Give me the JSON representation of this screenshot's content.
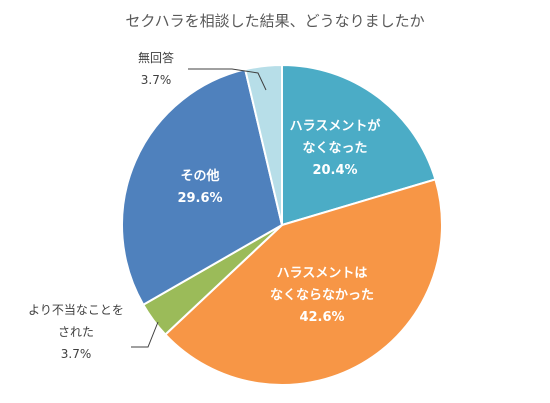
{
  "chart_data": {
    "type": "pie",
    "title": "セクハラを相談した結果、どうなりましたか",
    "slices": [
      {
        "label": [
          "ハラスメントが",
          "なくなった"
        ],
        "value": 20.4,
        "value_text": "20.4%",
        "color": "#4bacc6"
      },
      {
        "label": [
          "ハラスメントは",
          "なくならなかった"
        ],
        "value": 42.6,
        "value_text": "42.6%",
        "color": "#f79646"
      },
      {
        "label": [
          "より不当なことを",
          "された"
        ],
        "value": 3.7,
        "value_text": "3.7%",
        "color": "#9bbb59"
      },
      {
        "label": [
          "その他"
        ],
        "value": 29.6,
        "value_text": "29.6%",
        "color": "#4f81bd"
      },
      {
        "label": [
          "無回答"
        ],
        "value": 3.7,
        "value_text": "3.7%",
        "color": "#b7dee8"
      }
    ]
  }
}
